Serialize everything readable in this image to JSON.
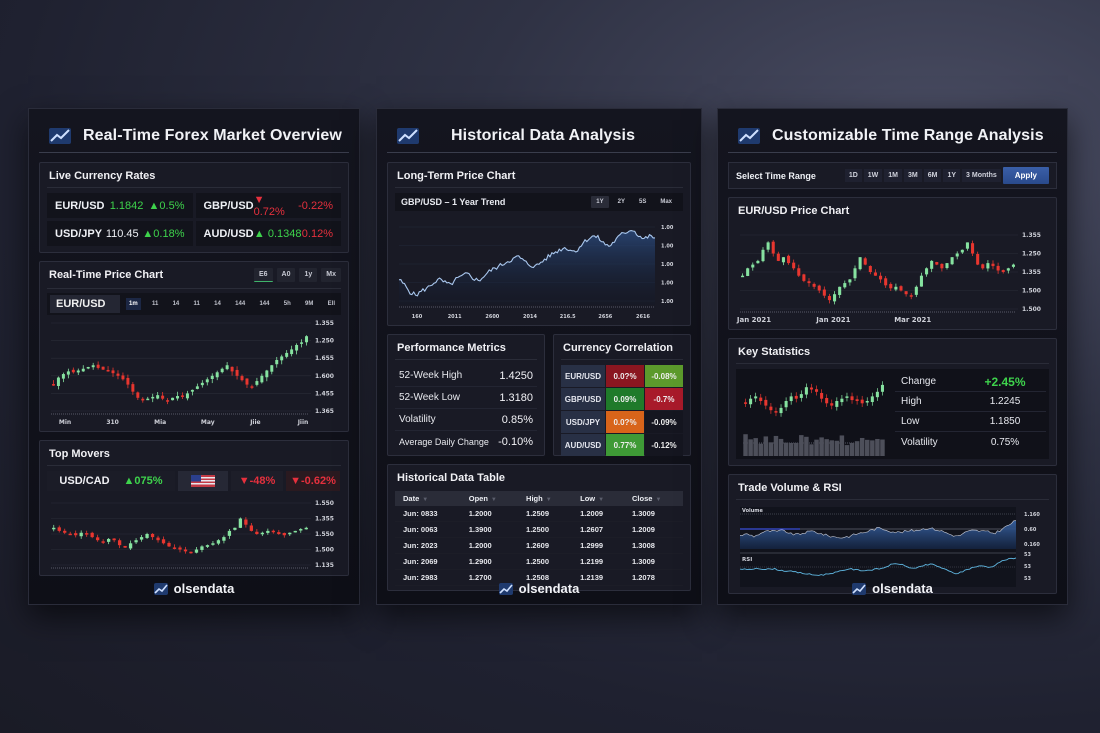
{
  "brand": "olsendata",
  "colors": {
    "up": "#3ed34c",
    "down": "#e5303d",
    "candle_up": "#7fe09a",
    "candle_down": "#e8362f",
    "accent_blue": "#2f56a0",
    "line_blue": "#a9c7ee",
    "orange": "#f08a3a"
  },
  "panel1": {
    "title": "Real-Time Forex Market Overview",
    "live_rates": {
      "title": "Live Currency Rates",
      "items": [
        {
          "pair": "EUR/USD",
          "rate": "1.1842",
          "rate_dir": "up",
          "change": "▲0.5%",
          "change_dir": "up"
        },
        {
          "pair": "GBP/USD",
          "rate": "▼ 0.72%",
          "rate_dir": "down",
          "change": "-0.22%",
          "change_dir": "down"
        },
        {
          "pair": "USD/JPY",
          "rate": "110.45",
          "rate_dir": "neutral",
          "change": "▲0.18%",
          "change_dir": "up"
        },
        {
          "pair": "AUD/USD",
          "rate": "▲ 0.1348",
          "rate_dir": "up",
          "change": "0.12%",
          "change_dir": "down"
        }
      ]
    },
    "price_chart": {
      "title": "Real-Time Price Chart",
      "range_buttons": [
        "E6",
        "A0",
        "1y",
        "Mx"
      ],
      "active_range": "E6",
      "pair": "EUR/USD",
      "timeframes": [
        "1m",
        "11",
        "14",
        "11",
        "14",
        "144",
        "144",
        "5h",
        "9M",
        "Ell"
      ],
      "selected_timeframe": "1m",
      "y_ticks": [
        "1.355",
        "1.250",
        "1.655",
        "1.600",
        "1.455",
        "1.365"
      ],
      "x_ticks": [
        "Min",
        "310",
        "Mia",
        "May",
        "Jiie",
        "Jiin"
      ]
    },
    "top_movers": {
      "title": "Top Movers",
      "pair": "USD/CAD",
      "pair_change": "▲075%",
      "flag_icon": "us-flag",
      "change_2": "▼-48%",
      "change_3": "▼-0.62%",
      "y_ticks": [
        "1.550",
        "1.355",
        "1.550",
        "1.500",
        "1.135"
      ]
    }
  },
  "panel2": {
    "title": "Historical Data Analysis",
    "long_term": {
      "title": "Long-Term Price Chart",
      "subtitle": "GBP/USD  –  1 Year Trend",
      "range_buttons": [
        "1Y",
        "2Y",
        "5S",
        "Max"
      ],
      "active_range": "1Y",
      "y_ticks": [
        "1.00",
        "1.00",
        "1.00",
        "1.00",
        "1.00"
      ],
      "x_ticks": [
        "160",
        "2011",
        "2600",
        "2014",
        "216.5",
        "2656",
        "2616"
      ]
    },
    "performance": {
      "title": "Performance Metrics",
      "rows": [
        {
          "label": "52-Week High",
          "value": "1.4250",
          "tone": "neutral"
        },
        {
          "label": "52-Week Low",
          "value": "1.3180",
          "tone": "neutral"
        },
        {
          "label": "Volatility",
          "value": "0.85%",
          "tone": "neutral"
        },
        {
          "label": "Average Daily Change",
          "value": "-0.10%",
          "tone": "orange"
        }
      ]
    },
    "correlation": {
      "title": "Currency Correlation",
      "rows": [
        {
          "pair": "EUR/USD",
          "c1": "0.0?%",
          "c1_bg": "#8a1620",
          "c2": "-0.08%",
          "c2_bg": "#5c9a2c"
        },
        {
          "pair": "GBP/USD",
          "c1": "0.09%",
          "c1_bg": "#1f7a2a",
          "c2": "-0.7%",
          "c2_bg": "#a81a2a"
        },
        {
          "pair": "USD/JPY",
          "c1": "0.0?%",
          "c1_bg": "#d8641a",
          "c2": "-0.09%",
          "c2_bg": "#151620"
        },
        {
          "pair": "AUD/USD",
          "c1": "0.77%",
          "c1_bg": "#3e9a36",
          "c2": "-0.12%",
          "c2_bg": "#151620"
        }
      ]
    },
    "history_table": {
      "title": "Historical Data Table",
      "columns": [
        "Date",
        "Open",
        "High",
        "Low",
        "Close"
      ],
      "rows": [
        [
          "Jun: 0833",
          "1.2000",
          "1.2509",
          "1.2009",
          "1.3009"
        ],
        [
          "Jun: 0063",
          "1.3900",
          "1.2500",
          "1.2607",
          "1.2009"
        ],
        [
          "Jun: 2023",
          "1.2000",
          "1.2609",
          "1.2999",
          "1.3008"
        ],
        [
          "Jun: 2069",
          "1.2900",
          "1.2500",
          "1.2199",
          "1.3009"
        ],
        [
          "Jun: 2983",
          "1.2700",
          "1.2508",
          "1.2139",
          "1.2078"
        ]
      ]
    }
  },
  "panel3": {
    "title": "Customizable Time Range Analysis",
    "range_select": {
      "label": "Select Time Range",
      "options": [
        "1D",
        "1W",
        "1M",
        "3M",
        "6M",
        "1Y",
        "3 Months"
      ],
      "apply_label": "Apply"
    },
    "price_chart": {
      "title": "EUR/USD Price Chart",
      "y_ticks": [
        "1.355",
        "1.250",
        "1.355",
        "1.500",
        "1.500"
      ],
      "x_ticks": [
        "Jan 2021",
        "Jan 2021",
        "Mar 2021"
      ]
    },
    "key_stats": {
      "title": "Key Statistics",
      "rows": [
        {
          "label": "Change",
          "value": "+2.45%",
          "tone": "up"
        },
        {
          "label": "High",
          "value": "1.2245",
          "tone": "neutral"
        },
        {
          "label": "Low",
          "value": "1.1850",
          "tone": "neutral"
        },
        {
          "label": "Volatility",
          "value": "0.75%",
          "tone": "neutral"
        }
      ]
    },
    "volume_rsi": {
      "title": "Trade Volume & RSI",
      "volume_label": "Volume",
      "rsi_label": "RSI",
      "volume_ticks": [
        "1.160",
        "0.60",
        "0.160"
      ],
      "rsi_ticks": [
        "53",
        "53",
        "53"
      ]
    }
  },
  "chart_data": [
    {
      "type": "candlestick",
      "title": "Real-Time Price Chart (EUR/USD)",
      "x_ticks": [
        "Min",
        "310",
        "Mia",
        "May",
        "Jiie",
        "Jiin"
      ],
      "y_ticks": [
        "1.355",
        "1.250",
        "1.655",
        "1.600",
        "1.455",
        "1.365"
      ],
      "close_trend": [
        0.3,
        0.38,
        0.42,
        0.45,
        0.44,
        0.46,
        0.48,
        0.5,
        0.52,
        0.49,
        0.47,
        0.45,
        0.43,
        0.4,
        0.36,
        0.3,
        0.22,
        0.15,
        0.12,
        0.14,
        0.16,
        0.18,
        0.14,
        0.12,
        0.15,
        0.17,
        0.16,
        0.2,
        0.24,
        0.28,
        0.32,
        0.36,
        0.4,
        0.44,
        0.48,
        0.52,
        0.45,
        0.4,
        0.35,
        0.3,
        0.28,
        0.34,
        0.4,
        0.46,
        0.52,
        0.58,
        0.62,
        0.66,
        0.7,
        0.75,
        0.78,
        0.85
      ]
    },
    {
      "type": "candlestick",
      "title": "Top Movers (USD/CAD)",
      "y_ticks": [
        "1.550",
        "1.355",
        "1.550",
        "1.500",
        "1.135"
      ],
      "close_trend": [
        0.6,
        0.55,
        0.52,
        0.5,
        0.48,
        0.52,
        0.5,
        0.45,
        0.4,
        0.38,
        0.42,
        0.4,
        0.32,
        0.28,
        0.35,
        0.4,
        0.45,
        0.5,
        0.45,
        0.4,
        0.35,
        0.3,
        0.28,
        0.25,
        0.22,
        0.2,
        0.25,
        0.3,
        0.32,
        0.35,
        0.4,
        0.45,
        0.55,
        0.6,
        0.75,
        0.65,
        0.55,
        0.5,
        0.52,
        0.55,
        0.54,
        0.5,
        0.48,
        0.52,
        0.55,
        0.58,
        0.6
      ]
    },
    {
      "type": "line",
      "title": "GBP/USD - 1 Year Trend",
      "x_ticks": [
        "160",
        "2011",
        "2600",
        "2014",
        "216.5",
        "2656",
        "2616"
      ],
      "y_ticks": [
        "1.00",
        "1.00",
        "1.00",
        "1.00",
        "1.00"
      ],
      "values": [
        0.3,
        0.22,
        0.12,
        0.08,
        0.14,
        0.18,
        0.25,
        0.3,
        0.26,
        0.22,
        0.3,
        0.34,
        0.38,
        0.32,
        0.28,
        0.35,
        0.42,
        0.46,
        0.5,
        0.55,
        0.58,
        0.62,
        0.55,
        0.5,
        0.48,
        0.54,
        0.6,
        0.66,
        0.7,
        0.74,
        0.72,
        0.68,
        0.78,
        0.85,
        0.9,
        0.88,
        0.8,
        0.76,
        0.84,
        0.92,
        0.96,
        1.0,
        0.92,
        0.86,
        0.9,
        0.88
      ]
    },
    {
      "type": "candlestick",
      "title": "EUR/USD Price Chart",
      "x_ticks": [
        "Jan 2021",
        "Jan 2021",
        "Mar 2021"
      ],
      "y_ticks": [
        "1.355",
        "1.250",
        "1.355",
        "1.500",
        "1.500"
      ],
      "close_trend": [
        0.45,
        0.55,
        0.6,
        0.65,
        0.8,
        0.9,
        0.75,
        0.65,
        0.7,
        0.62,
        0.55,
        0.45,
        0.38,
        0.35,
        0.3,
        0.25,
        0.18,
        0.12,
        0.2,
        0.3,
        0.35,
        0.4,
        0.55,
        0.7,
        0.6,
        0.5,
        0.45,
        0.4,
        0.32,
        0.28,
        0.3,
        0.25,
        0.2,
        0.18,
        0.3,
        0.45,
        0.55,
        0.65,
        0.6,
        0.55,
        0.62,
        0.7,
        0.75,
        0.8,
        0.9,
        0.75,
        0.6,
        0.55,
        0.62,
        0.58,
        0.52,
        0.5,
        0.55,
        0.6
      ]
    },
    {
      "type": "table",
      "title": "Key Statistics",
      "rows": [
        [
          "Change",
          "+2.45%"
        ],
        [
          "High",
          "1.2245"
        ],
        [
          "Low",
          "1.1850"
        ],
        [
          "Volatility",
          "0.75%"
        ]
      ]
    },
    {
      "type": "area",
      "title": "Trade Volume & RSI",
      "series": [
        {
          "name": "Volume",
          "values": [
            0.45,
            0.5,
            0.42,
            0.55,
            0.6,
            0.58,
            0.62,
            0.5,
            0.48,
            0.55,
            0.6,
            0.52,
            0.45,
            0.4,
            0.38,
            0.42,
            0.5,
            0.55,
            0.62,
            0.7,
            0.65,
            0.58,
            0.55,
            0.6,
            0.62,
            0.66,
            0.7,
            0.65,
            0.58,
            0.48,
            0.42,
            0.55,
            0.62,
            0.6,
            0.58,
            0.52,
            0.65,
            0.8,
            0.95
          ]
        },
        {
          "name": "RSI",
          "values": [
            0.55,
            0.5,
            0.58,
            0.52,
            0.55,
            0.48,
            0.45,
            0.4,
            0.35,
            0.3,
            0.32,
            0.38,
            0.45,
            0.55,
            0.5,
            0.48,
            0.52,
            0.56,
            0.7,
            0.75,
            0.62,
            0.55,
            0.68,
            0.72,
            0.6,
            0.45,
            0.35,
            0.5,
            0.62,
            0.66,
            0.6,
            0.8,
            0.92,
            0.95
          ]
        }
      ]
    },
    {
      "type": "table",
      "title": "Historical Data Table",
      "columns": [
        "Date",
        "Open",
        "High",
        "Low",
        "Close"
      ],
      "rows": [
        [
          "Jun: 0833",
          "1.2000",
          "1.2509",
          "1.2009",
          "1.3009"
        ],
        [
          "Jun: 0063",
          "1.3900",
          "1.2500",
          "1.2607",
          "1.2009"
        ],
        [
          "Jun: 2023",
          "1.2000",
          "1.2609",
          "1.2999",
          "1.3008"
        ],
        [
          "Jun: 2069",
          "1.2900",
          "1.2500",
          "1.2199",
          "1.3009"
        ],
        [
          "Jun: 2983",
          "1.2700",
          "1.2508",
          "1.2139",
          "1.2078"
        ]
      ]
    }
  ]
}
